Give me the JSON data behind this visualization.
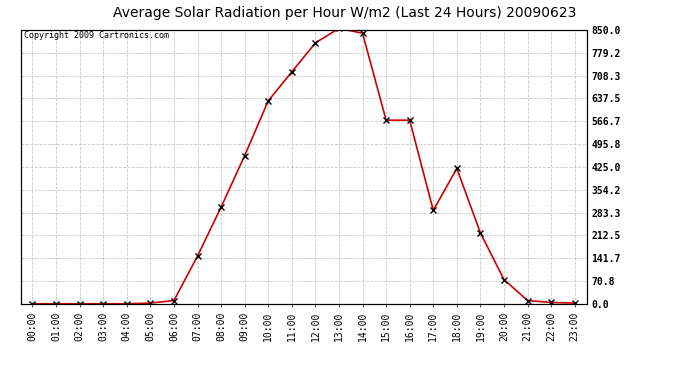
{
  "title": "Average Solar Radiation per Hour W/m2 (Last 24 Hours) 20090623",
  "copyright": "Copyright 2009 Cartronics.com",
  "hours": [
    "00:00",
    "01:00",
    "02:00",
    "03:00",
    "04:00",
    "05:00",
    "06:00",
    "07:00",
    "08:00",
    "09:00",
    "10:00",
    "11:00",
    "12:00",
    "13:00",
    "14:00",
    "15:00",
    "16:00",
    "17:00",
    "18:00",
    "19:00",
    "20:00",
    "21:00",
    "22:00",
    "23:00"
  ],
  "values": [
    0,
    0,
    0,
    0,
    0,
    2,
    10,
    148,
    300,
    460,
    630,
    720,
    810,
    855,
    840,
    570,
    570,
    290,
    420,
    220,
    75,
    10,
    4,
    2
  ],
  "line_color": "#cc0000",
  "marker": "x",
  "marker_color": "#000000",
  "bg_color": "#ffffff",
  "plot_bg_color": "#ffffff",
  "grid_color": "#c8c8c8",
  "title_fontsize": 10,
  "copyright_fontsize": 6,
  "tick_label_fontsize": 7,
  "ytick_label_fontsize": 7,
  "yticks": [
    0.0,
    70.8,
    141.7,
    212.5,
    283.3,
    354.2,
    425.0,
    495.8,
    566.7,
    637.5,
    708.3,
    779.2,
    850.0
  ],
  "ytick_labels": [
    "0.0",
    "70.8",
    "141.7",
    "212.5",
    "283.3",
    "354.2",
    "425.0",
    "495.8",
    "566.7",
    "637.5",
    "708.3",
    "779.2",
    "850.0"
  ],
  "ylim": [
    0,
    850
  ],
  "line_width": 1.2,
  "marker_size": 4
}
